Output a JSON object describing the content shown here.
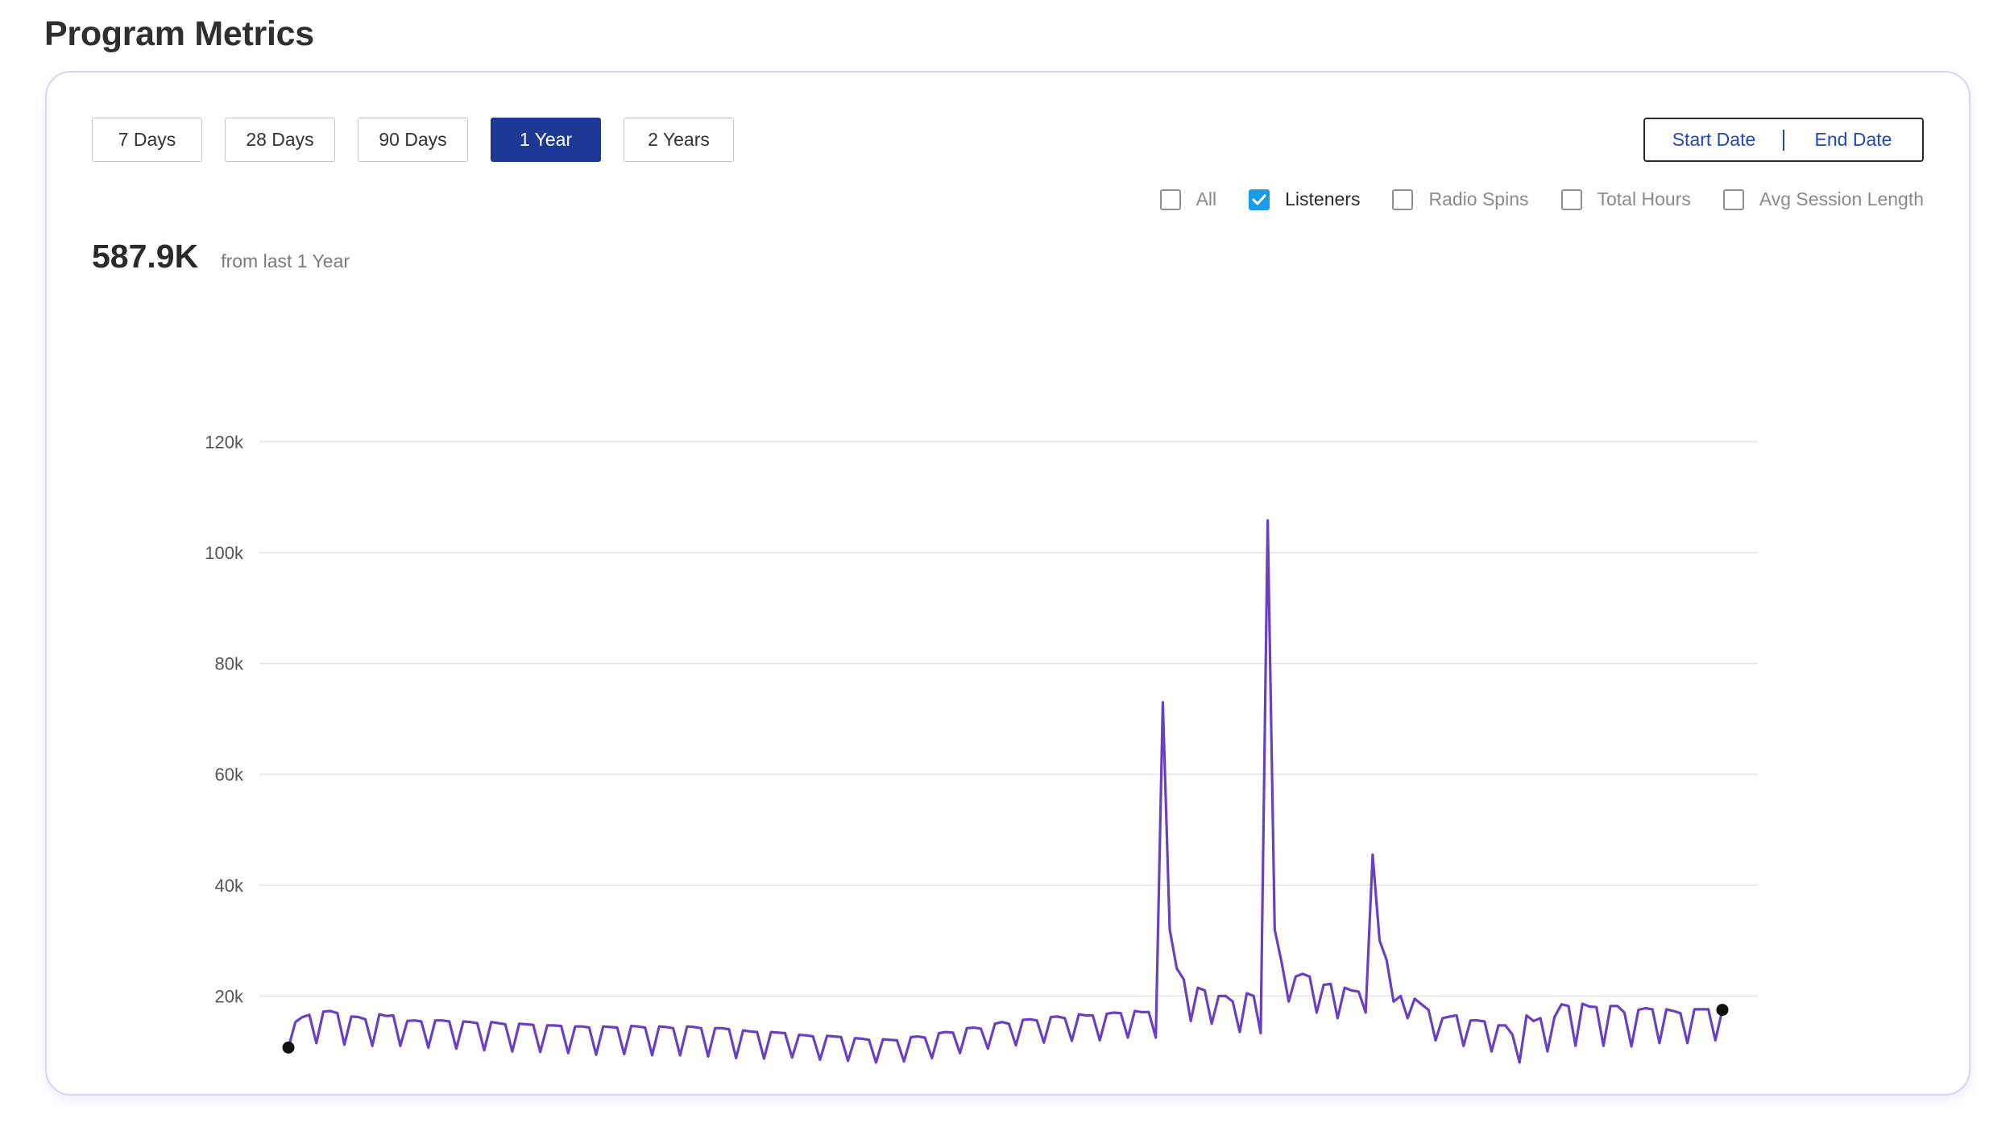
{
  "page": {
    "title": "Program Metrics"
  },
  "toolbar": {
    "ranges": [
      {
        "label": "7 Days",
        "active": false
      },
      {
        "label": "28 Days",
        "active": false
      },
      {
        "label": "90 Days",
        "active": false
      },
      {
        "label": "1 Year",
        "active": true
      },
      {
        "label": "2 Years",
        "active": false
      }
    ],
    "start_date_label": "Start Date",
    "end_date_label": "End Date"
  },
  "filters": [
    {
      "label": "All",
      "checked": false
    },
    {
      "label": "Listeners",
      "checked": true
    },
    {
      "label": "Radio Spins",
      "checked": false
    },
    {
      "label": "Total Hours",
      "checked": false
    },
    {
      "label": "Avg Session Length",
      "checked": false
    }
  ],
  "summary": {
    "value": "587.9K",
    "caption": "from last 1 Year"
  },
  "colors": {
    "accent": "#1e3896",
    "checkbox": "#1a9be8",
    "line": "#6a3fc0",
    "card_border": "#d9d3f5"
  },
  "chart_data": {
    "type": "line",
    "series": [
      {
        "values": [
          10700,
          15300,
          16200,
          16600,
          11500,
          17200,
          17300,
          16900,
          11200,
          16300,
          16200,
          15800,
          11000,
          16700,
          16400,
          16500,
          11000,
          15500,
          15600,
          15400,
          10700,
          15600,
          15600,
          15400,
          10500,
          15400,
          15300,
          15100,
          10200,
          15300,
          15100,
          14900,
          10000,
          15000,
          14900,
          14800,
          9900,
          14700,
          14700,
          14600,
          9700,
          14500,
          14500,
          14300,
          9400,
          14500,
          14400,
          14300,
          9500,
          14600,
          14500,
          14300,
          9300,
          14500,
          14400,
          14200,
          9300,
          14500,
          14400,
          14200,
          9100,
          14200,
          14200,
          14000,
          8800,
          13800,
          13600,
          13500,
          8700,
          13500,
          13400,
          13300,
          8900,
          13000,
          12900,
          12700,
          8500,
          12800,
          12700,
          12600,
          8300,
          12400,
          12300,
          12100,
          8000,
          12200,
          12100,
          12000,
          8200,
          12600,
          12700,
          12500,
          8800,
          13300,
          13500,
          13400,
          9700,
          14200,
          14300,
          14100,
          10500,
          15000,
          15300,
          15000,
          11100,
          15700,
          15800,
          15600,
          11600,
          16200,
          16300,
          16000,
          11900,
          16700,
          16500,
          16500,
          12000,
          16800,
          17000,
          16900,
          12500,
          17300,
          17100,
          17100,
          12500,
          73000,
          32000,
          25000,
          23000,
          15500,
          21500,
          21000,
          15000,
          20000,
          20000,
          19000,
          13500,
          20500,
          20000,
          13300,
          105800,
          32000,
          26000,
          19000,
          23500,
          24000,
          23500,
          17000,
          22000,
          22200,
          16000,
          21500,
          21000,
          20800,
          17000,
          45500,
          30000,
          26500,
          19000,
          20000,
          16000,
          19500,
          18500,
          17500,
          12000,
          16000,
          16300,
          16500,
          11000,
          15600,
          15600,
          15400,
          10000,
          14700,
          14700,
          13000,
          8000,
          16500,
          15500,
          16000,
          10000,
          16200,
          18500,
          18200,
          11000,
          18600,
          18100,
          18000,
          11000,
          18200,
          18200,
          17000,
          10900,
          17500,
          17800,
          17600,
          11500,
          17600,
          17300,
          16900,
          11500,
          17600,
          17600,
          17600,
          12000,
          17500
        ]
      }
    ],
    "y_ticks": [
      "20k",
      "40k",
      "60k",
      "80k",
      "100k",
      "120k"
    ],
    "ylim": [
      0,
      120000
    ],
    "grid": true
  }
}
